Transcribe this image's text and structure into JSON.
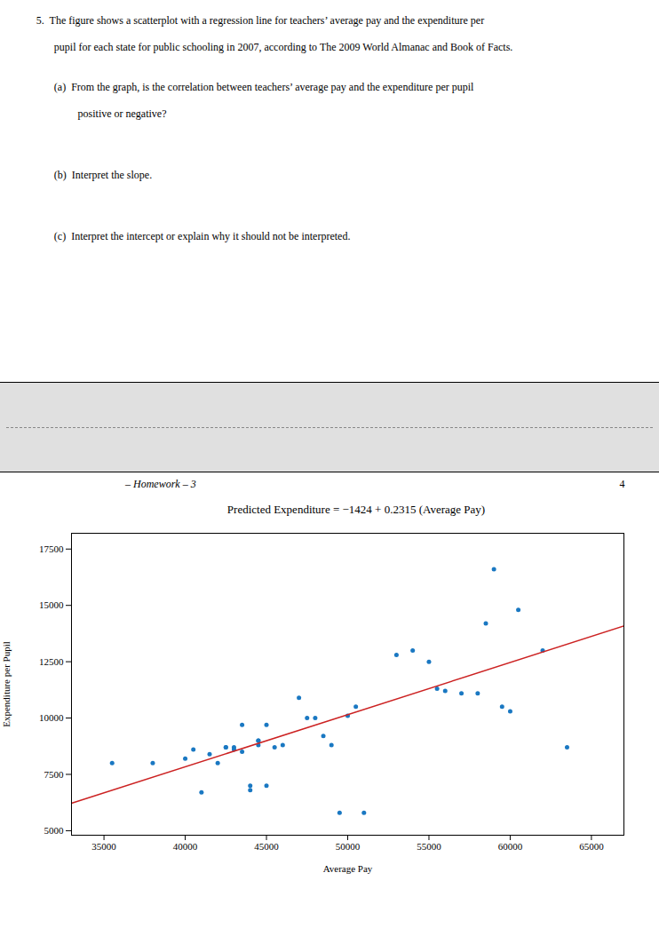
{
  "chart_data": {
    "type": "scatter",
    "title": "Predicted Expenditure = −1424 + 0.2315 (Average Pay)",
    "xlabel": "Average Pay",
    "ylabel": "Expenditure per Pupil",
    "annotations": [
      "5.  The figure shows a scatterplot with a regression line for teachers’ average pay and the expenditure per",
      "pupil for each state for public schooling in 2007, according to The 2009 World Almanac and Book of Facts.",
      "(a)  From the graph, is the correlation between teachers’ average pay and the expenditure per pupil",
      "positive or negative?",
      "(b)  Interpret the slope.",
      "(c)  Interpret the intercept or explain why it should not be interpreted.",
      "– Homework – 3",
      "4"
    ],
    "xlim": [
      33000,
      67000
    ],
    "ylim": [
      4800,
      18200
    ],
    "xticks": [
      35000,
      40000,
      45000,
      50000,
      55000,
      60000,
      65000
    ],
    "yticks": [
      5000,
      7500,
      10000,
      12500,
      15000,
      17500
    ],
    "grid": false,
    "series": [
      {
        "type": "scatter",
        "color": "#1a78c2",
        "x": [
          35500,
          38000,
          40000,
          40500,
          41000,
          41500,
          42000,
          42500,
          42500,
          43000,
          43000,
          43500,
          43500,
          44000,
          44000,
          44500,
          44500,
          44500,
          45000,
          45000,
          45500,
          46000,
          47000,
          47500,
          48000,
          48500,
          49000,
          49500,
          50000,
          50500,
          51000,
          53000,
          54000,
          55000,
          55500,
          56000,
          57000,
          58000,
          58500,
          59000,
          59500,
          60000,
          60500,
          62000,
          63500
        ],
        "values": [
          8000,
          8000,
          8200,
          8600,
          6700,
          8400,
          8000,
          8700,
          8700,
          8700,
          8600,
          8500,
          9700,
          7000,
          6800,
          9000,
          9000,
          8800,
          9700,
          7000,
          8700,
          8800,
          10900,
          10000,
          10000,
          9200,
          8800,
          5800,
          10100,
          10500,
          5800,
          12800,
          13000,
          12500,
          11300,
          11200,
          11100,
          11100,
          14200,
          16600,
          10500,
          10300,
          14800,
          13000,
          8700
        ]
      },
      {
        "type": "line",
        "color": "#cc2222",
        "x": [
          33000,
          67000
        ],
        "values": [
          6215.5,
          14086.5
        ]
      }
    ]
  }
}
